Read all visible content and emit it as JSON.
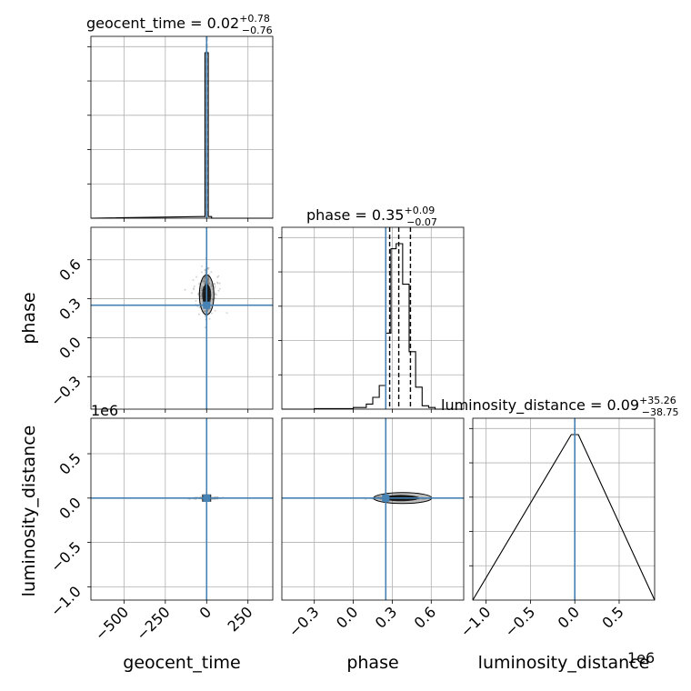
{
  "chart_data": {
    "type": "corner",
    "parameters": [
      "geocent_time",
      "phase",
      "luminosity_distance"
    ],
    "offset_labels": {
      "left_luminosity_distance": "1e6",
      "bottom_luminosity_distance": "1e6"
    },
    "truth_color": "#4682b4",
    "titles": [
      {
        "param": "geocent_time",
        "base": "geocent_time = 0.02",
        "plus": "+0.78",
        "minus": "−0.76"
      },
      {
        "param": "phase",
        "base": "phase = 0.35",
        "plus": "+0.09",
        "minus": "−0.07"
      },
      {
        "param": "luminosity_distance",
        "base": "luminosity_distance = 0.09",
        "plus": "+35.26",
        "minus": "−38.75"
      }
    ],
    "ranges": {
      "geocent_time": [
        -700,
        400
      ],
      "phase": [
        -0.55,
        0.85
      ],
      "luminosity_distance": [
        -1.15,
        0.9
      ]
    },
    "ticks": {
      "geocent_time": {
        "values": [
          -500,
          -250,
          0,
          250
        ],
        "labels": [
          "−500",
          "−250",
          "0",
          "250"
        ]
      },
      "phase": {
        "values": [
          -0.3,
          0.0,
          0.3,
          0.6
        ],
        "labels": [
          "−0.3",
          "0.0",
          "0.3",
          "0.6"
        ]
      },
      "luminosity_distance": {
        "values": [
          -1.0,
          -0.5,
          0.0,
          0.5
        ],
        "labels": [
          "−1.0",
          "−0.5",
          "0.0",
          "0.5"
        ]
      }
    },
    "truths": {
      "geocent_time": 0.0,
      "phase": 0.25,
      "luminosity_distance": 0.0
    },
    "quantiles": {
      "geocent_time": [
        -0.74,
        0.02,
        0.8
      ],
      "phase": [
        0.28,
        0.35,
        0.44
      ],
      "luminosity_distance": [
        -4e-05,
        0.0,
        4e-05
      ]
    },
    "histograms": {
      "geocent_time": {
        "edges": [
          -30,
          -10,
          10,
          30,
          50
        ],
        "counts": [
          1,
          100,
          1,
          0
        ]
      },
      "phase": {
        "edges": [
          -0.55,
          -0.46,
          -0.3,
          0.0,
          0.1,
          0.15,
          0.2,
          0.25,
          0.29,
          0.33,
          0.38,
          0.43,
          0.48,
          0.53,
          0.58,
          0.63,
          0.68
        ],
        "counts": [
          0,
          0,
          0.3,
          1,
          3,
          7,
          14,
          45,
          95,
          98,
          74,
          34,
          13,
          2,
          1,
          0
        ]
      },
      "luminosity_distance": {
        "edges": [
          -0.04,
          0.0,
          0.04
        ],
        "counts": [
          100,
          100
        ]
      }
    }
  }
}
